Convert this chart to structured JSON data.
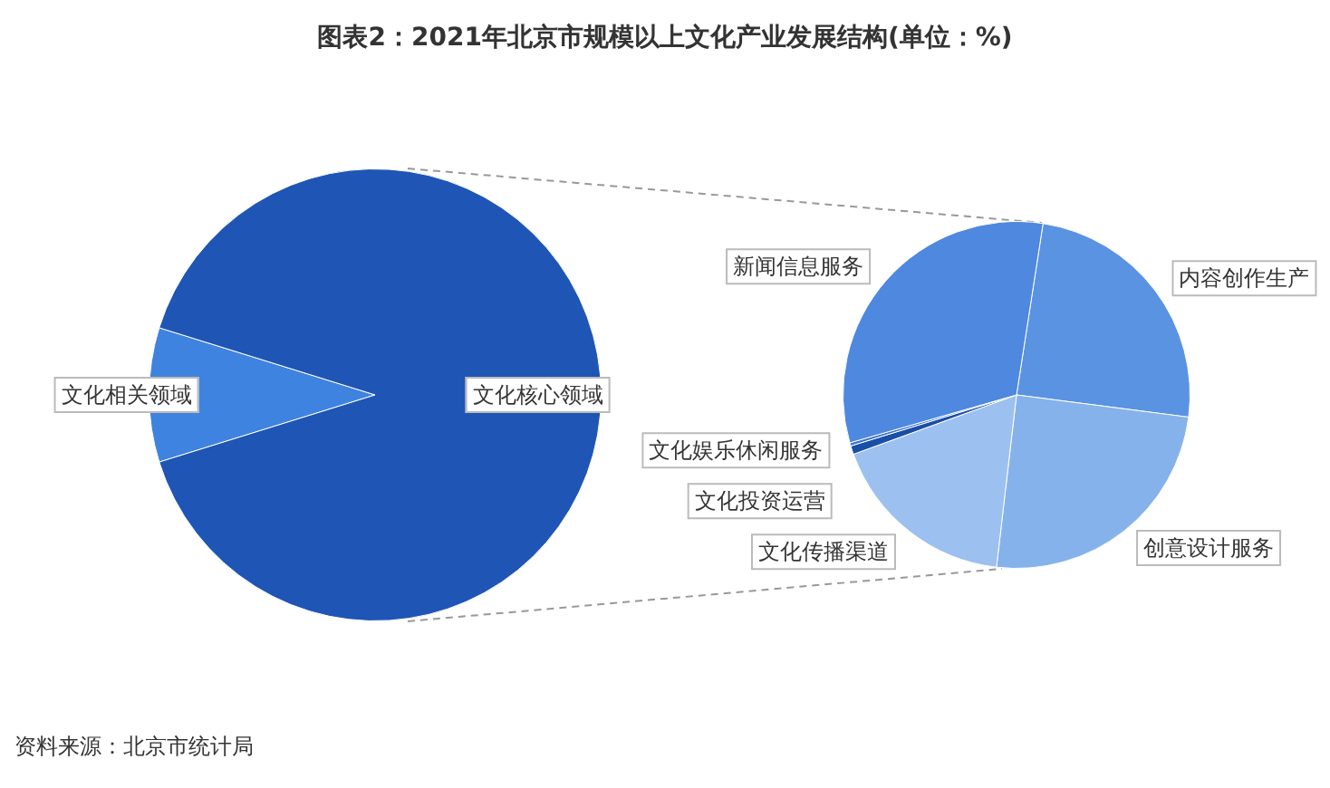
{
  "chart_data": [
    {
      "type": "pie",
      "title": "图表2：2021年北京市规模以上文化产业发展结构(单位：%)",
      "annotations": [
        "资料来源：北京市统计局"
      ],
      "categories": [
        "文化相关领域",
        "文化核心领域"
      ],
      "values": [
        9.6,
        90.4
      ],
      "colors": [
        "#3f83e0",
        "#1f55b5"
      ]
    },
    {
      "type": "pie",
      "categories": [
        "内容创作生产",
        "创意设计服务",
        "文化传播渠道",
        "文化投资运营",
        "文化娱乐休闲服务",
        "新闻信息服务"
      ],
      "values": [
        24.6,
        24.8,
        17.6,
        0.8,
        0.3,
        31.9
      ],
      "colors": [
        "#5a93e2",
        "#86b2ec",
        "#9cc0f0",
        "#1a4fa8",
        "#3a76d4",
        "#4e88df"
      ]
    }
  ]
}
